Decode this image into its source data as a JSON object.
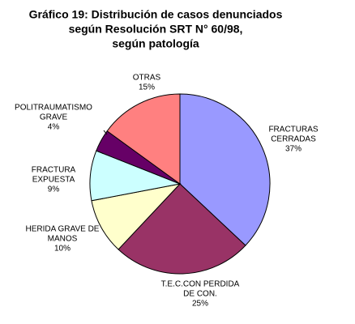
{
  "chart_data": {
    "type": "pie",
    "title": [
      "Gráfico 19: Distribución de casos denunciados",
      "según Resolución SRT N° 60/98,",
      "según patología"
    ],
    "categories": [
      [
        "FRACTURAS",
        "CERRADAS"
      ],
      [
        "T.E.C.CON PERDIDA",
        "DE CON."
      ],
      [
        "HERIDA GRAVE DE",
        "MANOS"
      ],
      [
        "FRACTURA",
        "EXPUESTA"
      ],
      [
        "POLITRAUMATISMO",
        "GRAVE"
      ],
      [
        "OTRAS"
      ]
    ],
    "values": [
      37,
      25,
      10,
      9,
      4,
      15
    ],
    "value_labels": [
      "37%",
      "25%",
      "10%",
      "9%",
      "4%",
      "15%"
    ],
    "colors": [
      "#9999ff",
      "#993366",
      "#ffffcc",
      "#ccffff",
      "#660066",
      "#ff8080"
    ]
  }
}
